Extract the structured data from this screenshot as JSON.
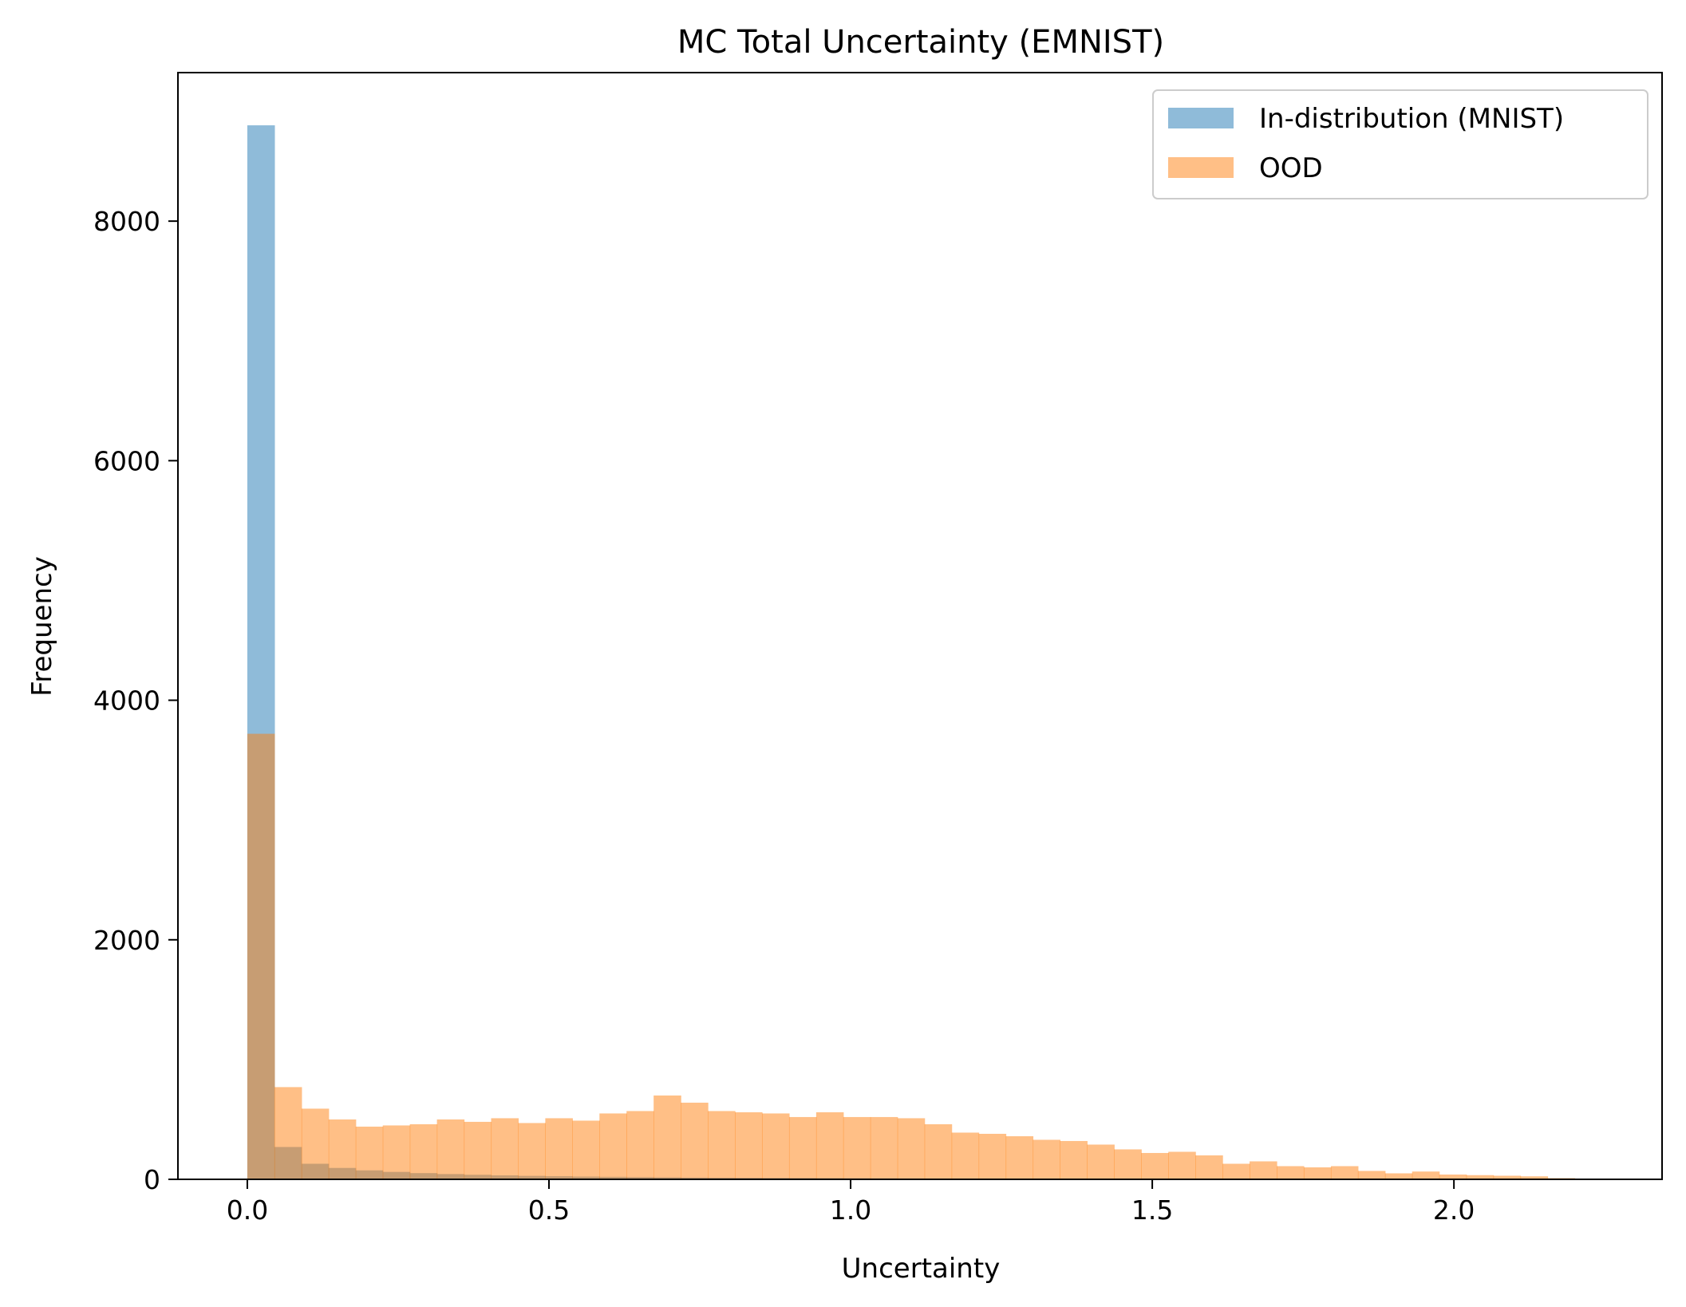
{
  "chart_data": {
    "type": "bar",
    "title": "MC Total Uncertainty (EMNIST)",
    "xlabel": "Uncertainty",
    "ylabel": "Frequency",
    "xlim": [
      -0.115,
      2.345
    ],
    "ylim": [
      0,
      9240
    ],
    "xticks": [
      0.0,
      0.5,
      1.0,
      1.5,
      2.0
    ],
    "xtick_labels": [
      "0.0",
      "0.5",
      "1.0",
      "1.5",
      "2.0"
    ],
    "yticks": [
      0,
      2000,
      4000,
      6000,
      8000
    ],
    "ytick_labels": [
      "0",
      "2000",
      "4000",
      "6000",
      "8000"
    ],
    "legend_placement": "top-right",
    "bin_width": 0.0449,
    "bin_start": 0.0,
    "series": [
      {
        "name": "In-distribution (MNIST)",
        "color": "#1f77b4",
        "alpha": 0.5,
        "values": [
          8800,
          270,
          130,
          95,
          75,
          62,
          52,
          44,
          38,
          33,
          29,
          26,
          23,
          21,
          19,
          17,
          15,
          14,
          13,
          12,
          11,
          10,
          9,
          8,
          7,
          6,
          5,
          5,
          4,
          4,
          3,
          3,
          3,
          2,
          2,
          2,
          2,
          1,
          1,
          1,
          1,
          1,
          1,
          1,
          0,
          0,
          0,
          0,
          0,
          0
        ]
      },
      {
        "name": "OOD",
        "color": "#ff7f0e",
        "alpha": 0.5,
        "values": [
          3720,
          770,
          590,
          500,
          440,
          450,
          460,
          500,
          480,
          510,
          470,
          510,
          490,
          550,
          570,
          700,
          640,
          570,
          560,
          550,
          520,
          560,
          520,
          520,
          510,
          460,
          390,
          380,
          360,
          330,
          320,
          290,
          250,
          220,
          230,
          200,
          130,
          150,
          110,
          100,
          110,
          70,
          50,
          65,
          40,
          35,
          30,
          25,
          10,
          5
        ]
      }
    ]
  }
}
